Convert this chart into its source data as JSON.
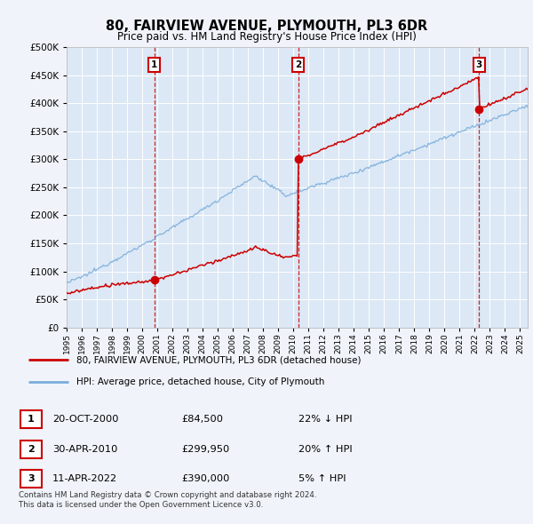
{
  "title": "80, FAIRVIEW AVENUE, PLYMOUTH, PL3 6DR",
  "subtitle": "Price paid vs. HM Land Registry's House Price Index (HPI)",
  "background_color": "#f0f4fa",
  "plot_bg_color": "#dce8f5",
  "ylim": [
    0,
    500000
  ],
  "yticks": [
    0,
    50000,
    100000,
    150000,
    200000,
    250000,
    300000,
    350000,
    400000,
    450000,
    500000
  ],
  "sales": [
    {
      "date_num": 2000.8,
      "price": 84500,
      "label": "1"
    },
    {
      "date_num": 2010.33,
      "price": 299950,
      "label": "2"
    },
    {
      "date_num": 2022.28,
      "price": 390000,
      "label": "3"
    }
  ],
  "legend_sale_label": "80, FAIRVIEW AVENUE, PLYMOUTH, PL3 6DR (detached house)",
  "legend_hpi_label": "HPI: Average price, detached house, City of Plymouth",
  "sale_line_color": "#cc0000",
  "hpi_line_color": "#7aaddc",
  "vline_color": "#cc0000",
  "marker_box_color": "#cc0000",
  "table_rows": [
    {
      "num": "1",
      "date": "20-OCT-2000",
      "price": "£84,500",
      "hpi": "22% ↓ HPI"
    },
    {
      "num": "2",
      "date": "30-APR-2010",
      "price": "£299,950",
      "hpi": "20% ↑ HPI"
    },
    {
      "num": "3",
      "date": "11-APR-2022",
      "price": "£390,000",
      "hpi": "5% ↑ HPI"
    }
  ],
  "footer": "Contains HM Land Registry data © Crown copyright and database right 2024.\nThis data is licensed under the Open Government Licence v3.0.",
  "xmin": 1995,
  "xmax": 2025.5
}
